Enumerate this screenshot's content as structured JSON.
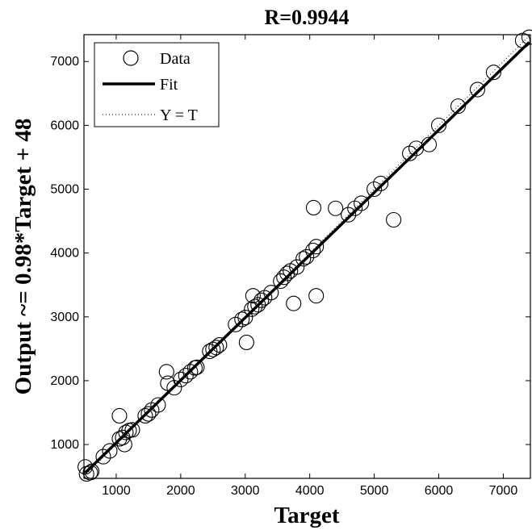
{
  "chart_data": {
    "type": "scatter",
    "title": "R=0.9944",
    "xlabel": "Target",
    "ylabel": "Output ~= 0.98*Target + 48",
    "xlim": [
      500,
      7420
    ],
    "ylim": [
      470,
      7420
    ],
    "xticks": [
      1000,
      2000,
      3000,
      4000,
      5000,
      6000,
      7000
    ],
    "yticks": [
      1000,
      2000,
      3000,
      4000,
      5000,
      6000,
      7000
    ],
    "grid": false,
    "legend": {
      "placement": "top-left",
      "entries": [
        "Data",
        "Fit",
        "Y = T"
      ]
    },
    "fit": {
      "slope": 0.98,
      "intercept": 48
    },
    "series": [
      {
        "name": "Data",
        "points": [
          [
            520,
            650
          ],
          [
            540,
            540
          ],
          [
            600,
            560
          ],
          [
            620,
            580
          ],
          [
            800,
            810
          ],
          [
            900,
            900
          ],
          [
            1050,
            1450
          ],
          [
            1050,
            1090
          ],
          [
            1100,
            1110
          ],
          [
            1150,
            1190
          ],
          [
            1130,
            1000
          ],
          [
            1200,
            1220
          ],
          [
            1250,
            1230
          ],
          [
            1450,
            1450
          ],
          [
            1500,
            1480
          ],
          [
            1550,
            1540
          ],
          [
            1650,
            1620
          ],
          [
            1780,
            2140
          ],
          [
            1800,
            1960
          ],
          [
            1900,
            1890
          ],
          [
            2000,
            2020
          ],
          [
            2080,
            2080
          ],
          [
            2150,
            2140
          ],
          [
            2220,
            2200
          ],
          [
            2250,
            2210
          ],
          [
            2450,
            2460
          ],
          [
            2500,
            2490
          ],
          [
            2550,
            2520
          ],
          [
            2600,
            2560
          ],
          [
            2850,
            2880
          ],
          [
            2950,
            2960
          ],
          [
            3000,
            2990
          ],
          [
            3020,
            2600
          ],
          [
            3100,
            3120
          ],
          [
            3120,
            3330
          ],
          [
            3150,
            3160
          ],
          [
            3200,
            3190
          ],
          [
            3250,
            3260
          ],
          [
            3300,
            3300
          ],
          [
            3400,
            3380
          ],
          [
            3550,
            3560
          ],
          [
            3600,
            3620
          ],
          [
            3650,
            3680
          ],
          [
            3700,
            3720
          ],
          [
            3750,
            3210
          ],
          [
            3800,
            3780
          ],
          [
            3900,
            3910
          ],
          [
            3950,
            3940
          ],
          [
            4050,
            4040
          ],
          [
            4060,
            4710
          ],
          [
            4100,
            3330
          ],
          [
            4100,
            4100
          ],
          [
            4400,
            4700
          ],
          [
            4600,
            4600
          ],
          [
            4700,
            4700
          ],
          [
            4800,
            4780
          ],
          [
            5000,
            5000
          ],
          [
            5100,
            5090
          ],
          [
            5300,
            4520
          ],
          [
            5550,
            5560
          ],
          [
            5650,
            5640
          ],
          [
            5850,
            5700
          ],
          [
            6000,
            6000
          ],
          [
            6300,
            6300
          ],
          [
            6600,
            6560
          ],
          [
            6850,
            6830
          ],
          [
            7300,
            7330
          ],
          [
            7400,
            7380
          ]
        ]
      }
    ]
  }
}
